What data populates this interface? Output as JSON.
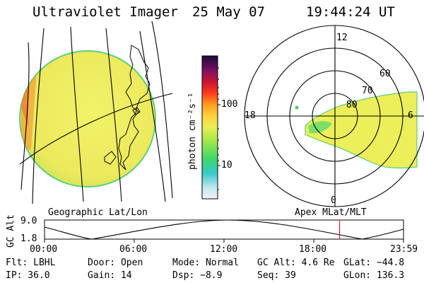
{
  "header": {
    "instrument": "Ultraviolet Imager",
    "date": "25 May 07",
    "time": "19:44:24 UT"
  },
  "colorbar": {
    "unit_label": "photon cm⁻²s⁻¹",
    "ticks": [
      "100",
      "10"
    ]
  },
  "polar": {
    "labels": [
      "12",
      "60",
      "70",
      "80",
      "18",
      "6",
      "0"
    ]
  },
  "panel_labels": {
    "left": "Geographic Lat/Lon",
    "right": "Apex MLat/MLT"
  },
  "altitude_plot": {
    "ylabel": "GC Alt",
    "y_ticks": [
      "9.0",
      "1.8"
    ],
    "x_ticks": [
      "00:00",
      "06:00",
      "12:00",
      "18:00",
      "23:59"
    ],
    "current_time_fraction": 0.822
  },
  "info": {
    "flt": "Flt: LBHL",
    "door": "Door: Open",
    "mode": "Mode: Normal",
    "gcalt": "GC Alt: 4.6 Re",
    "glat": "GLat: −44.8",
    "ip": "IP: 36.0",
    "gain": "Gain: 14",
    "dsp": "Dsp:   −8.9",
    "seq": "Seq: 39",
    "glon": "GLon: 136.3"
  },
  "colors": {
    "marker": "#e0201e",
    "aurora_fill": "#ecee5a",
    "disk_fill": "#e9ec63"
  }
}
